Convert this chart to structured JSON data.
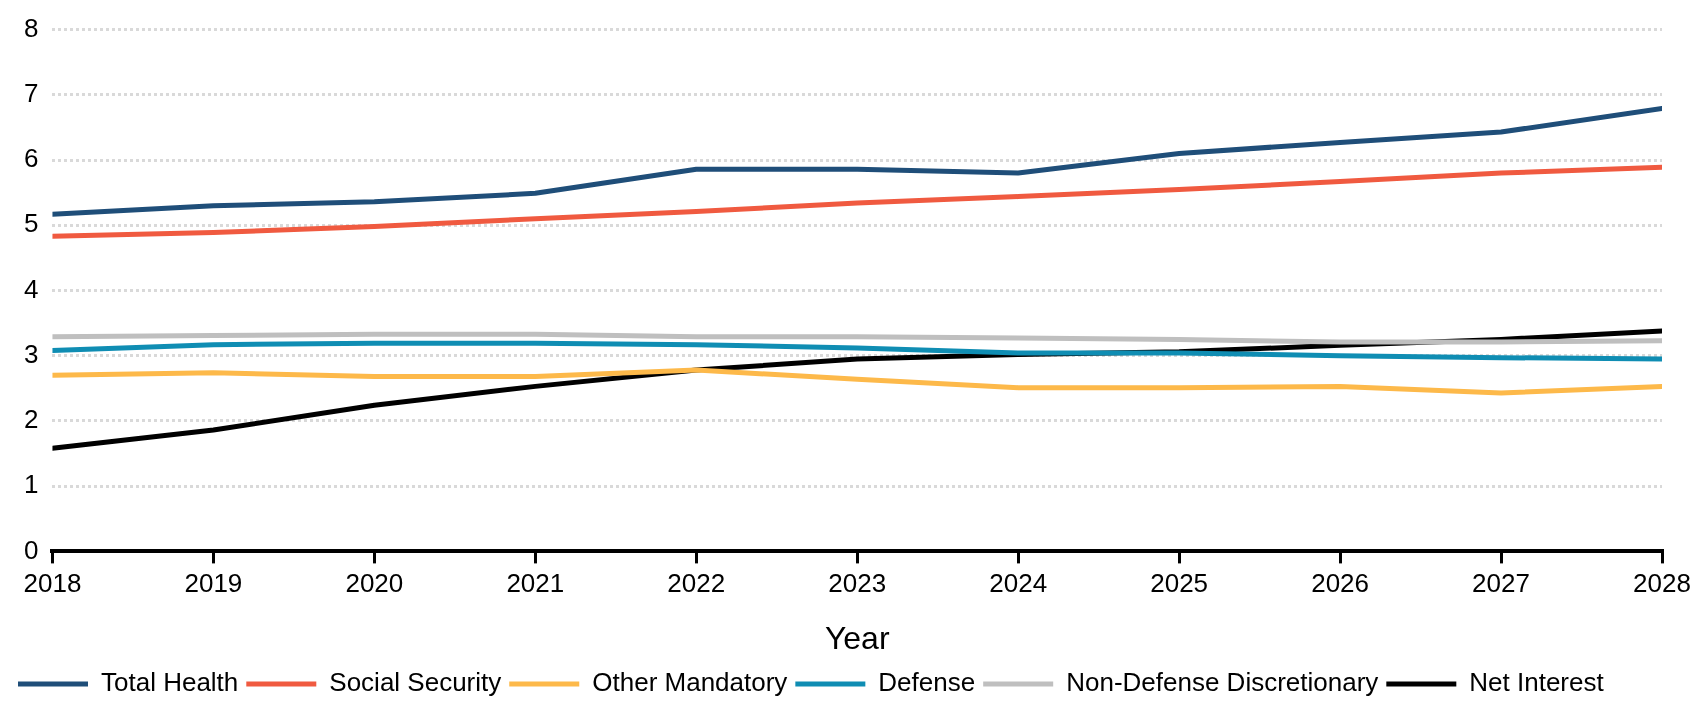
{
  "chart_data": {
    "type": "line",
    "xlabel": "Year",
    "x": [
      2018,
      2019,
      2020,
      2021,
      2022,
      2023,
      2024,
      2025,
      2026,
      2027,
      2028
    ],
    "xlim": [
      2018,
      2028
    ],
    "xticks": [
      2018,
      2019,
      2020,
      2021,
      2022,
      2023,
      2024,
      2025,
      2026,
      2027,
      2028
    ],
    "ylim": [
      0,
      8
    ],
    "yticks": [
      0,
      1,
      2,
      3,
      4,
      5,
      6,
      7,
      8
    ],
    "grid": "y",
    "legend": "bottom",
    "marker": "none",
    "line_style": "solid",
    "series": [
      {
        "name": "Total Health",
        "color": "#1f4e79",
        "values": [
          5.17,
          5.3,
          5.36,
          5.49,
          5.86,
          5.86,
          5.8,
          6.1,
          6.27,
          6.43,
          6.79
        ]
      },
      {
        "name": "Social Security",
        "color": "#f05a40",
        "values": [
          4.83,
          4.89,
          4.98,
          5.1,
          5.21,
          5.34,
          5.44,
          5.55,
          5.67,
          5.8,
          5.89
        ]
      },
      {
        "name": "Other Mandatory",
        "color": "#fdb94a",
        "values": [
          2.7,
          2.74,
          2.68,
          2.68,
          2.78,
          2.64,
          2.51,
          2.51,
          2.53,
          2.43,
          2.53
        ]
      },
      {
        "name": "Defense",
        "color": "#0f8db3",
        "values": [
          3.08,
          3.17,
          3.19,
          3.19,
          3.17,
          3.12,
          3.04,
          3.04,
          3.0,
          2.97,
          2.95
        ]
      },
      {
        "name": "Non-Defense Discretionary",
        "color": "#bfbfbf",
        "values": [
          3.29,
          3.31,
          3.33,
          3.33,
          3.29,
          3.29,
          3.27,
          3.25,
          3.21,
          3.21,
          3.23
        ]
      },
      {
        "name": "Net Interest",
        "color": "#000000",
        "values": [
          1.58,
          1.86,
          2.24,
          2.53,
          2.78,
          2.95,
          3.02,
          3.06,
          3.16,
          3.25,
          3.38
        ]
      }
    ]
  }
}
